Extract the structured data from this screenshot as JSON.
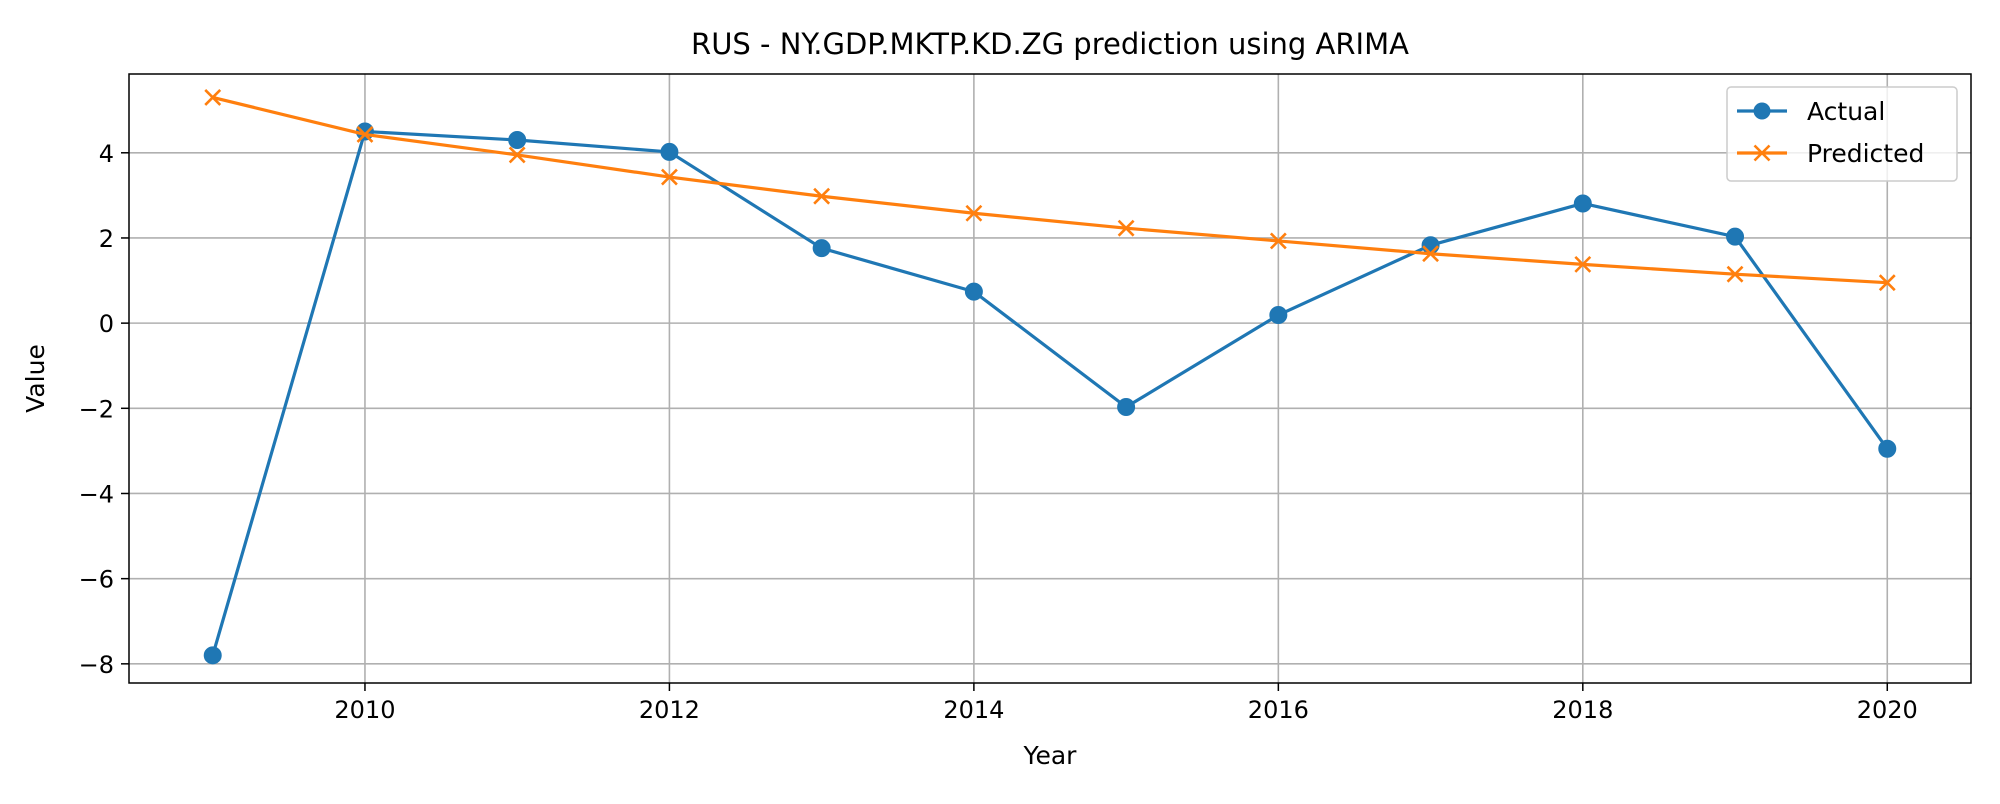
{
  "chart_data": {
    "type": "line",
    "title": "RUS - NY.GDP.MKTP.KD.ZG prediction using ARIMA",
    "xlabel": "Year",
    "ylabel": "Value",
    "xlim": [
      2008.45,
      2020.55
    ],
    "ylim": [
      -8.45,
      5.85
    ],
    "xticks": [
      2010,
      2012,
      2014,
      2016,
      2018,
      2020
    ],
    "yticks": [
      -8,
      -6,
      -4,
      -2,
      0,
      2,
      4
    ],
    "grid": true,
    "legend": "top-right",
    "x": [
      2009,
      2010,
      2011,
      2012,
      2013,
      2014,
      2015,
      2016,
      2017,
      2018,
      2019,
      2020
    ],
    "series": [
      {
        "name": "Actual",
        "color": "#1f77b4",
        "marker": "circle",
        "values": [
          -7.8,
          4.5,
          4.3,
          4.02,
          1.76,
          0.74,
          -1.97,
          0.19,
          1.83,
          2.81,
          2.03,
          -2.95
        ]
      },
      {
        "name": "Predicted",
        "color": "#ff7f0e",
        "marker": "x",
        "values": [
          5.3,
          4.43,
          3.95,
          3.43,
          2.98,
          2.58,
          2.23,
          1.93,
          1.63,
          1.38,
          1.15,
          0.95
        ]
      }
    ]
  }
}
